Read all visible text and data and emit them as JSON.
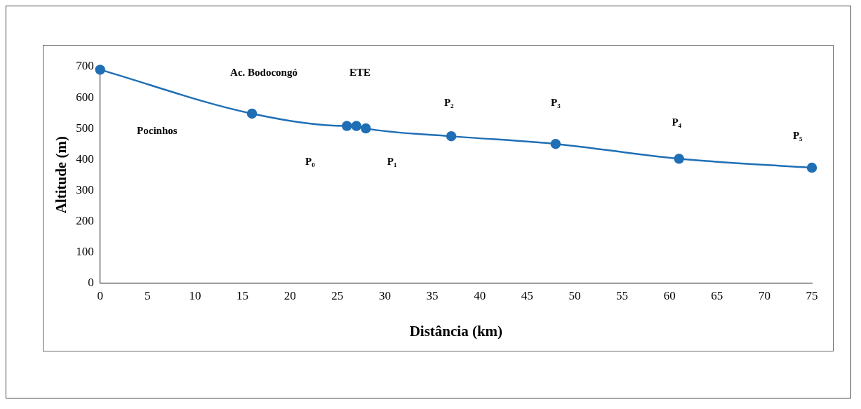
{
  "chart_data": {
    "type": "line",
    "xlabel": "Distância (km)",
    "ylabel": "Altitude (m)",
    "x": [
      0,
      16,
      26,
      27,
      28,
      37,
      48,
      61,
      75
    ],
    "series": [
      {
        "color": "#1f6fb5",
        "values": [
          690,
          548,
          508,
          508,
          500,
          475,
          450,
          402,
          373
        ]
      }
    ],
    "xlim": [
      0,
      75
    ],
    "xticks": [
      0,
      5,
      10,
      15,
      20,
      25,
      30,
      35,
      40,
      45,
      50,
      55,
      60,
      65,
      70,
      75
    ],
    "ylim": [
      0,
      700
    ],
    "yticks": [
      0,
      100,
      200,
      300,
      400,
      500,
      600,
      700
    ],
    "grid": false,
    "legend": false,
    "marker": "circle",
    "line_style": "solid",
    "annotations": [
      "Pocinhos",
      "Ac. Bodocongó",
      "ETE",
      "P₀",
      "P₁",
      "P₂",
      "P₃",
      "P₄",
      "P₅"
    ]
  }
}
